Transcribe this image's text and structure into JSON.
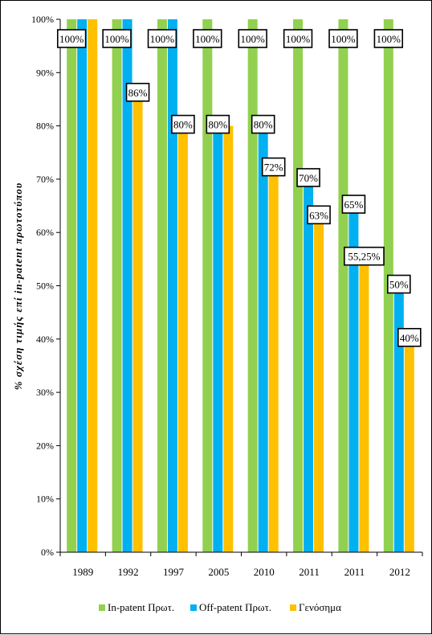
{
  "chart_data": {
    "type": "bar",
    "categories": [
      "1989",
      "1992",
      "1997",
      "2005",
      "2010",
      "2011",
      "2011",
      "2012"
    ],
    "series": [
      {
        "name": "In-patent Πρωτ.",
        "color": "#92D050",
        "values": [
          100,
          100,
          100,
          100,
          100,
          100,
          100,
          100
        ]
      },
      {
        "name": "Off-patent Πρωτ.",
        "color": "#00B0F0",
        "values": [
          100,
          100,
          100,
          80,
          80,
          70,
          65,
          50
        ]
      },
      {
        "name": "Γενόσημα",
        "color": "#FFC000",
        "values": [
          100,
          86,
          80,
          80,
          72,
          63,
          55.25,
          40
        ]
      }
    ],
    "data_labels": [
      {
        "series": 0,
        "index": 0,
        "text": "100%"
      },
      {
        "series": 0,
        "index": 1,
        "text": "100%"
      },
      {
        "series": 0,
        "index": 2,
        "text": "100%"
      },
      {
        "series": 0,
        "index": 3,
        "text": "100%"
      },
      {
        "series": 0,
        "index": 4,
        "text": "100%"
      },
      {
        "series": 0,
        "index": 5,
        "text": "100%"
      },
      {
        "series": 0,
        "index": 6,
        "text": "100%"
      },
      {
        "series": 0,
        "index": 7,
        "text": "100%"
      },
      {
        "series": 2,
        "index": 1,
        "text": "86%"
      },
      {
        "series": 2,
        "index": 2,
        "text": "80%"
      },
      {
        "series": 1,
        "index": 3,
        "text": "80%"
      },
      {
        "series": 1,
        "index": 4,
        "text": "80%"
      },
      {
        "series": 2,
        "index": 4,
        "text": "72%"
      },
      {
        "series": 1,
        "index": 5,
        "text": "70%"
      },
      {
        "series": 2,
        "index": 5,
        "text": "63%"
      },
      {
        "series": 1,
        "index": 6,
        "text": "65%"
      },
      {
        "series": 2,
        "index": 6,
        "text": "55,25%"
      },
      {
        "series": 1,
        "index": 7,
        "text": "50%"
      },
      {
        "series": 2,
        "index": 7,
        "text": "40%"
      }
    ],
    "ylabel": "% σχέση τιμής επί in-patent πρωτοτύπου",
    "xlabel": "",
    "ylim": [
      0,
      100
    ],
    "yticks": [
      0,
      10,
      20,
      30,
      40,
      50,
      60,
      70,
      80,
      90,
      100
    ],
    "ytick_labels": [
      "0%",
      "10%",
      "20%",
      "30%",
      "40%",
      "50%",
      "60%",
      "70%",
      "80%",
      "90%",
      "100%"
    ],
    "grid": false,
    "legend": "bottom"
  }
}
